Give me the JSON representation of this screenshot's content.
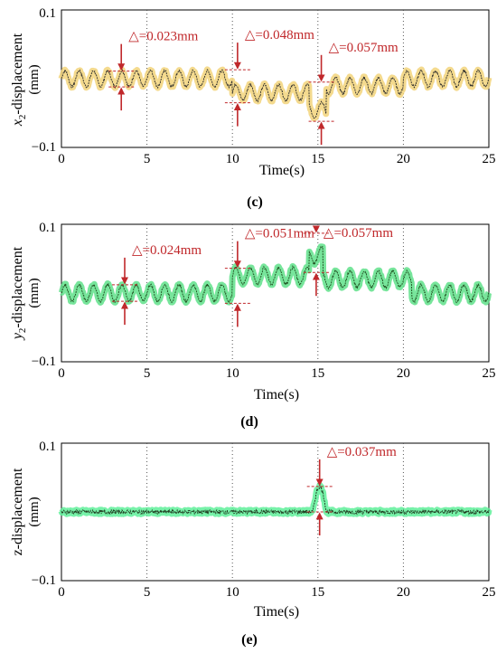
{
  "chart_data": [
    {
      "type": "line",
      "panel_label": "(c)",
      "xlabel": "Time(s)",
      "ylabel": "x₂-displacement (mm)",
      "ylabel_var": "x",
      "ylabel_sub": "2",
      "ylabel_text": "-displacement",
      "ylabel_unit": "(mm)",
      "xlim": [
        0,
        25
      ],
      "ylim": [
        -0.1,
        0.1
      ],
      "x_ticks": [
        0,
        5,
        10,
        15,
        20,
        25
      ],
      "y_ticks": [
        "0.1",
        "−0.1"
      ],
      "grid": "vertical dotted",
      "line_color": "#2a2a2a",
      "band_color": "#f2d37a",
      "series": [
        {
          "signal": "oscillation",
          "amplitude_mm": 0.0115,
          "frequency_hz": 1.2,
          "segments": [
            {
              "x": [
                0,
                10
              ],
              "offset": 0.0
            },
            {
              "x": [
                10,
                14.5
              ],
              "offset": -0.02
            },
            {
              "x": [
                14.5,
                15.5
              ],
              "offset": -0.045
            },
            {
              "x": [
                15.5,
                20
              ],
              "offset": -0.01
            },
            {
              "x": [
                20,
                25
              ],
              "offset": 0.0
            }
          ]
        }
      ],
      "annotations": [
        {
          "text": "△=0.023mm",
          "x": 3.5,
          "y_top": 0.011,
          "y_bottom": -0.012
        },
        {
          "text": "△=0.048mm",
          "x": 10.3,
          "y_top": 0.013,
          "y_bottom": -0.035
        },
        {
          "text": "△=0.057mm",
          "x": 15.2,
          "y_top": -0.005,
          "y_bottom": -0.062
        }
      ]
    },
    {
      "type": "line",
      "panel_label": "(d)",
      "xlabel": "Time(s)",
      "ylabel": "y₂-displacement (mm)",
      "ylabel_var": "y",
      "ylabel_sub": "2",
      "ylabel_text": "-displacement",
      "ylabel_unit": "(mm)",
      "xlim": [
        0,
        25
      ],
      "ylim": [
        -0.1,
        0.1
      ],
      "x_ticks": [
        0,
        5,
        10,
        15,
        20,
        25
      ],
      "y_ticks": [
        "0.1",
        "−0.1"
      ],
      "grid": "vertical dotted",
      "line_color": "#1e4d1e",
      "band_color": "#5fe08a",
      "series": [
        {
          "signal": "oscillation",
          "amplitude_mm": 0.012,
          "frequency_hz": 1.2,
          "segments": [
            {
              "x": [
                0,
                10
              ],
              "offset": 0.0
            },
            {
              "x": [
                10,
                14.5
              ],
              "offset": 0.025
            },
            {
              "x": [
                14.5,
                15.3
              ],
              "offset": 0.055
            },
            {
              "x": [
                15.3,
                20.5
              ],
              "offset": 0.02
            },
            {
              "x": [
                20.5,
                25
              ],
              "offset": 0.0
            }
          ]
        }
      ],
      "annotations": [
        {
          "text": "△=0.024mm",
          "x": 3.7,
          "y_top": 0.012,
          "y_bottom": -0.012
        },
        {
          "text": "△=0.051mm",
          "x": 10.3,
          "y_top": 0.036,
          "y_bottom": -0.015
        },
        {
          "text": "△=0.057mm",
          "x": 14.9,
          "y_top": 0.087,
          "y_bottom": 0.03
        }
      ]
    },
    {
      "type": "line",
      "panel_label": "(e)",
      "xlabel": "Time(s)",
      "ylabel": "z-displacement (mm)",
      "ylabel_var": "",
      "ylabel_sub": "",
      "ylabel_text": "z-displacement",
      "ylabel_unit": "(mm)",
      "xlim": [
        0,
        25
      ],
      "ylim": [
        -0.1,
        0.1
      ],
      "x_ticks": [
        0,
        5,
        10,
        15,
        20,
        25
      ],
      "y_ticks": [
        "0.1",
        "−0.1"
      ],
      "grid": "vertical dotted",
      "line_color": "#1e3a1e",
      "band_color": "#5ff09a",
      "series": [
        {
          "signal": "noise",
          "amplitude_mm": 0.003,
          "baseline_mm": 0.0,
          "pulse": {
            "x_start": 14.7,
            "x_end": 15.5,
            "peak_mm": 0.037
          }
        }
      ],
      "annotations": [
        {
          "text": "△=0.037mm",
          "x": 15.1,
          "y_top": 0.037,
          "y_bottom": 0.0
        }
      ]
    }
  ]
}
